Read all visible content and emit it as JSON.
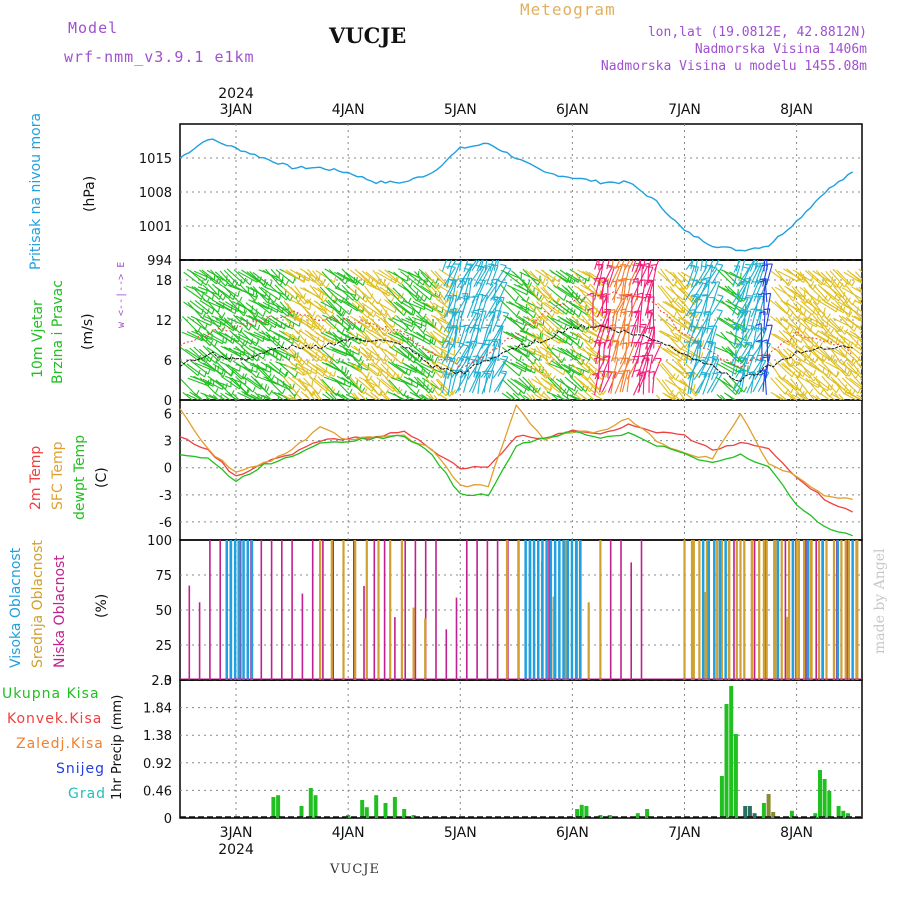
{
  "header": {
    "model_label": "Model",
    "model_name": "wrf-nmm_v3.9.1 e1km",
    "station": "VUCJE",
    "product": "Meteogram",
    "lonlat": "lon,lat (19.0812E, 42.8812N)",
    "elevation": "Nadmorska Visina 1406m",
    "model_elevation": "Nadmorska Visina u modelu 1455.08m"
  },
  "footer": {
    "station": "VUCJE",
    "made_by": "made by Angel"
  },
  "colors": {
    "pressure": "#20a0e0",
    "temp": "#f04040",
    "sfc": "#e0a030",
    "dew": "#20c020",
    "wind_green": "#20c020",
    "wind_yellow": "#e0c020",
    "wind_cyan": "#20b0d0",
    "wind_blue": "#2040e0",
    "wind_pink": "#f0207a",
    "wind_orange": "#f08030",
    "cloud_high": "#20a0e0",
    "cloud_mid": "#d0a030",
    "cloud_low": "#c02090",
    "precip_total": "#20c020",
    "precip_conv": "#f04040",
    "precip_frz": "#f08030",
    "precip_snow": "#2040e0",
    "precip_grad": "#20c0c0",
    "label_purple": "#a050d0"
  },
  "axes": {
    "year": "2024",
    "day_labels": [
      "3JAN",
      "4JAN",
      "5JAN",
      "6JAN",
      "7JAN",
      "8JAN"
    ]
  },
  "panels": {
    "pressure": {
      "label1": "Pritisak na nivou mora",
      "unit": "(hPa)",
      "ticks": [
        "1015",
        "1008",
        "1001",
        "994"
      ]
    },
    "wind": {
      "label1": "10m Vjetar",
      "label2": "Brzina i Pravac",
      "unit": "(m/s)",
      "compass": "w <--|--> E",
      "ticks": [
        "18",
        "12",
        "6",
        "0"
      ]
    },
    "temp": {
      "label1": "2m Temp",
      "label2": "SFC Temp",
      "label3": "dewpt Temp",
      "unit": "(C)",
      "ticks": [
        "6",
        "3",
        "0",
        "-3",
        "-6"
      ]
    },
    "cloud": {
      "label1": "Visoka Oblacnost",
      "label2": "Srednja Oblacnost",
      "label3": "Niska Oblacnost",
      "unit": "(%)",
      "ticks": [
        "100",
        "75",
        "50",
        "25",
        "0"
      ]
    },
    "precip": {
      "unit": "1hr Precip (mm)",
      "legend": [
        "Ukupna Kisa",
        "Konvek.Kisa",
        "Zaledj.Kisa",
        "Snijeg",
        "Grad"
      ],
      "ticks": [
        "2.3",
        "1.84",
        "1.38",
        "0.92",
        "0.46",
        "0"
      ]
    }
  },
  "chart_data": [
    {
      "type": "line",
      "title": "Pritisak na nivou mora",
      "ylabel": "(hPa)",
      "ylim": [
        994,
        1022
      ],
      "x_hours": [
        0,
        6,
        12,
        18,
        24,
        30,
        36,
        42,
        48,
        54,
        60,
        66,
        72,
        78,
        84,
        90,
        96,
        102,
        108,
        114,
        120,
        126,
        132,
        138,
        144
      ],
      "series": [
        {
          "values": [
            1015,
            1019,
            1017,
            1015,
            1013,
            1013,
            1012,
            1010,
            1010,
            1012,
            1017,
            1018,
            1015,
            1012,
            1011,
            1010,
            1010,
            1006,
            1000,
            997,
            996,
            997,
            1002,
            1008,
            1012
          ]
        }
      ]
    },
    {
      "type": "line",
      "title": "10m Vjetar Brzina i Pravac",
      "ylabel": "(m/s)",
      "ylim": [
        0,
        21
      ],
      "x_hours": [
        0,
        6,
        12,
        18,
        24,
        30,
        36,
        42,
        48,
        54,
        60,
        66,
        72,
        78,
        84,
        90,
        96,
        102,
        108,
        114,
        120,
        126,
        132,
        138,
        144
      ],
      "series": [
        {
          "values": [
            5,
            7,
            6,
            7,
            8,
            8,
            9,
            9,
            8,
            5,
            4,
            6,
            8,
            9,
            11,
            11,
            10,
            9,
            7,
            5,
            3,
            5,
            7,
            8,
            8
          ]
        },
        {
          "values": [
            8,
            10,
            11,
            12,
            13,
            12,
            12,
            11,
            10,
            7,
            5,
            7,
            10,
            13,
            15,
            16,
            16,
            14,
            10,
            7,
            5,
            7,
            10,
            9,
            7
          ]
        }
      ]
    },
    {
      "type": "line",
      "title": "2m Temp / SFC Temp / dewpt Temp",
      "ylabel": "(C)",
      "ylim": [
        -8,
        7.5
      ],
      "x_hours": [
        0,
        6,
        12,
        18,
        24,
        30,
        36,
        42,
        48,
        54,
        60,
        66,
        72,
        78,
        84,
        90,
        96,
        102,
        108,
        114,
        120,
        126,
        132,
        138,
        144
      ],
      "series": [
        {
          "name": "2m Temp",
          "values": [
            3.5,
            2,
            -1,
            0.5,
            1.5,
            3,
            3.2,
            3.5,
            4,
            2,
            0,
            0,
            3.5,
            3.3,
            4.2,
            3.8,
            4.7,
            4,
            3.5,
            2,
            2.8,
            2,
            -1,
            -3.5,
            -5
          ]
        },
        {
          "name": "SFC Temp",
          "values": [
            6.5,
            2,
            -0.5,
            0.5,
            2,
            4.5,
            3,
            3.5,
            3.5,
            2,
            -2,
            -2,
            7,
            3,
            4,
            4,
            5.5,
            3,
            1.5,
            1,
            6,
            0.5,
            -1,
            -3,
            -3.5
          ]
        },
        {
          "name": "dewpt Temp",
          "values": [
            1.5,
            1,
            -1.5,
            0.3,
            1.3,
            2.8,
            3,
            3.3,
            3.5,
            1.5,
            -3,
            -3,
            2.5,
            3.3,
            4,
            3.3,
            3.8,
            2.5,
            1.5,
            0.5,
            1.5,
            0,
            -4,
            -6.5,
            -7.5
          ]
        }
      ]
    },
    {
      "type": "bar",
      "title": "Visoka / Srednja / Niska Oblacnost",
      "ylabel": "(%)",
      "ylim": [
        0,
        100
      ]
    },
    {
      "type": "bar",
      "title": "1hr Precip",
      "ylabel": "1hr Precip (mm)",
      "ylim": [
        0,
        2.3
      ],
      "x_hours": [
        20,
        21,
        26,
        28,
        29,
        36,
        39,
        40,
        42,
        44,
        46,
        48,
        50,
        85,
        86,
        87,
        90,
        92,
        98,
        100,
        116,
        117,
        118,
        119,
        121,
        122,
        123,
        125,
        126,
        127,
        131,
        136,
        137,
        138,
        139,
        141,
        142,
        143
      ],
      "series": [
        {
          "name": "Ukupna Kisa",
          "values": [
            0.35,
            0.38,
            0.2,
            0.5,
            0.38,
            0.05,
            0.3,
            0.18,
            0.38,
            0.25,
            0.35,
            0.15,
            0.05,
            0.15,
            0.22,
            0.2,
            0.05,
            0.05,
            0.08,
            0.15,
            0.7,
            1.9,
            2.2,
            1.4,
            0.2,
            0.2,
            0.08,
            0.25,
            0.4,
            0.1,
            0.12,
            0.08,
            0.8,
            0.65,
            0.45,
            0.2,
            0.12,
            0.08
          ]
        }
      ]
    }
  ]
}
